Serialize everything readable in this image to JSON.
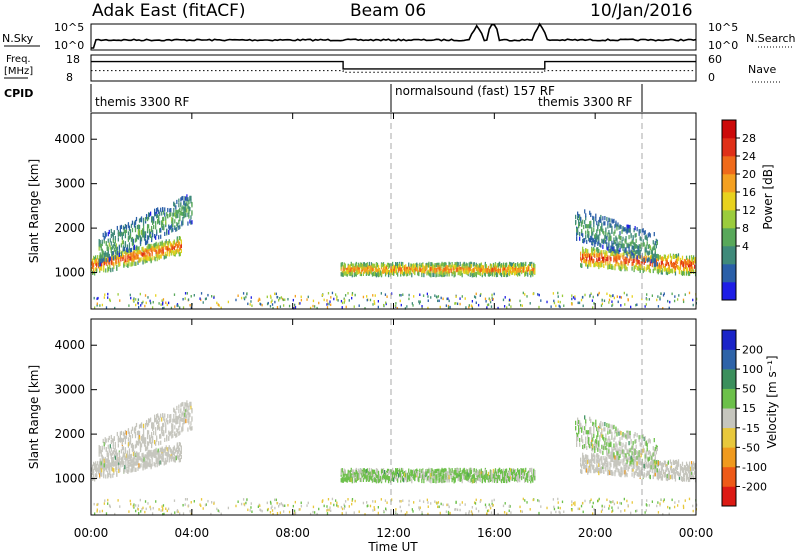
{
  "header": {
    "radar_title": "Adak East (fitACF)",
    "beam_label": "Beam 06",
    "date_label": "10/Jan/2016"
  },
  "top_panels": {
    "nsky_label": "N.Sky",
    "nsky_ticks": [
      "10^5",
      "10^0"
    ],
    "nsearch_label": "N.Search",
    "nsearch_ticks": [
      "10^5",
      "10^0"
    ],
    "freq_label_line1": "Freq.",
    "freq_label_line2": "[MHz]",
    "freq_ticks": [
      "18",
      "8"
    ],
    "nave_label": "Nave",
    "nave_ticks": [
      "60",
      "0"
    ],
    "cpid_label": "CPID",
    "cpid_segments": [
      {
        "label": "themis 3300 RF",
        "start_hour": 0,
        "end_hour": 12
      },
      {
        "label": "normalsound (fast) 157 RF",
        "start_hour": 12,
        "end_hour": 22
      },
      {
        "label": "themis 3300 RF",
        "start_hour": 22,
        "end_hour": 24
      }
    ],
    "freq_series_mhz": [
      [
        0,
        17
      ],
      [
        0.2,
        17
      ],
      [
        10,
        17
      ],
      [
        10,
        14.2
      ],
      [
        18,
        14.2
      ],
      [
        18,
        17
      ],
      [
        24,
        17
      ]
    ],
    "nave_series": [
      [
        0,
        24
      ],
      [
        10,
        24
      ],
      [
        10,
        20
      ],
      [
        18,
        20
      ],
      [
        18,
        24
      ],
      [
        24,
        24
      ]
    ]
  },
  "power_panel": {
    "ylabel": "Slant Range [km]",
    "yticks": [
      "4000",
      "3000",
      "2000",
      "1000"
    ],
    "colorbar_label": "Power [dB]",
    "colorbar_ticks": [
      "28",
      "24",
      "20",
      "16",
      "12",
      "8",
      "4"
    ],
    "colors": [
      "#1e1ee6",
      "#2a5fa8",
      "#3f8a7a",
      "#58a85a",
      "#9bcc3c",
      "#e8d21e",
      "#f4a020",
      "#ef6a1a",
      "#e03018",
      "#cc0a0a"
    ]
  },
  "velocity_panel": {
    "ylabel": "Slant Range [km]",
    "yticks": [
      "4000",
      "3000",
      "2000",
      "1000"
    ],
    "colorbar_label": "Velocity [m s⁻¹]",
    "colorbar_ticks": [
      "200",
      "100",
      "50",
      "15",
      "-15",
      "-50",
      "-100",
      "-200"
    ],
    "colors": [
      "#1a24c8",
      "#2e63a8",
      "#3b8f5c",
      "#6cc04a",
      "#c6c6be",
      "#e8c83c",
      "#f09a1e",
      "#ee5a18",
      "#dc1a14"
    ]
  },
  "x_axis": {
    "ticks": [
      "00:00",
      "04:00",
      "08:00",
      "12:00",
      "16:00",
      "20:00",
      "00:00"
    ],
    "label": "Time UT"
  },
  "chart_data": {
    "type": "heatmap",
    "title": "Adak East (fitACF)",
    "x_range_hours": [
      0,
      24
    ],
    "y_range_km": [
      180,
      4590
    ],
    "scatter_regions": [
      {
        "t_start": 0.0,
        "t_end": 3.6,
        "r_center_start": 1150,
        "r_center_end": 1600,
        "thickness": 380,
        "power_db": 22,
        "velocity": 0
      },
      {
        "t_start": 0.3,
        "t_end": 4.0,
        "r_center_start": 1500,
        "r_center_end": 2450,
        "thickness": 650,
        "power_db": 10,
        "velocity": 0
      },
      {
        "t_start": 9.9,
        "t_end": 17.6,
        "r_center_start": 1070,
        "r_center_end": 1070,
        "thickness": 260,
        "power_db": 20,
        "velocity": 20
      },
      {
        "t_start": 19.4,
        "t_end": 24.0,
        "r_center_start": 1350,
        "r_center_end": 1150,
        "thickness": 420,
        "power_db": 23,
        "velocity": 0
      },
      {
        "t_start": 19.2,
        "t_end": 22.5,
        "r_center_start": 2100,
        "r_center_end": 1500,
        "thickness": 700,
        "power_db": 9,
        "velocity": 10
      }
    ]
  }
}
